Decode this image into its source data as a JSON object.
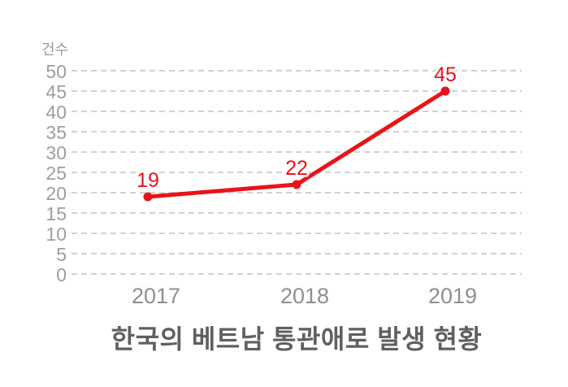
{
  "chart_data": {
    "type": "line",
    "title": "한국의 베트남 통관애로 발생 현황",
    "ylabel": "건수",
    "categories": [
      "2017",
      "2018",
      "2019"
    ],
    "values": [
      19,
      22,
      45
    ],
    "data_labels": [
      "19",
      "22",
      "45"
    ],
    "ylim": [
      0,
      50
    ],
    "ytick_step": 5,
    "grid": "horizontal-dashed",
    "legend": "none",
    "colors": {
      "line": "#e8141a",
      "point": "#e8141a",
      "data_label": "#e8141a",
      "grid": "#d2d2d2",
      "y_tick": "#9e9e9e",
      "x_tick": "#8f8f8f",
      "unit_label": "#9a9a9a",
      "title": "#606060",
      "background": "#ffffff"
    }
  }
}
